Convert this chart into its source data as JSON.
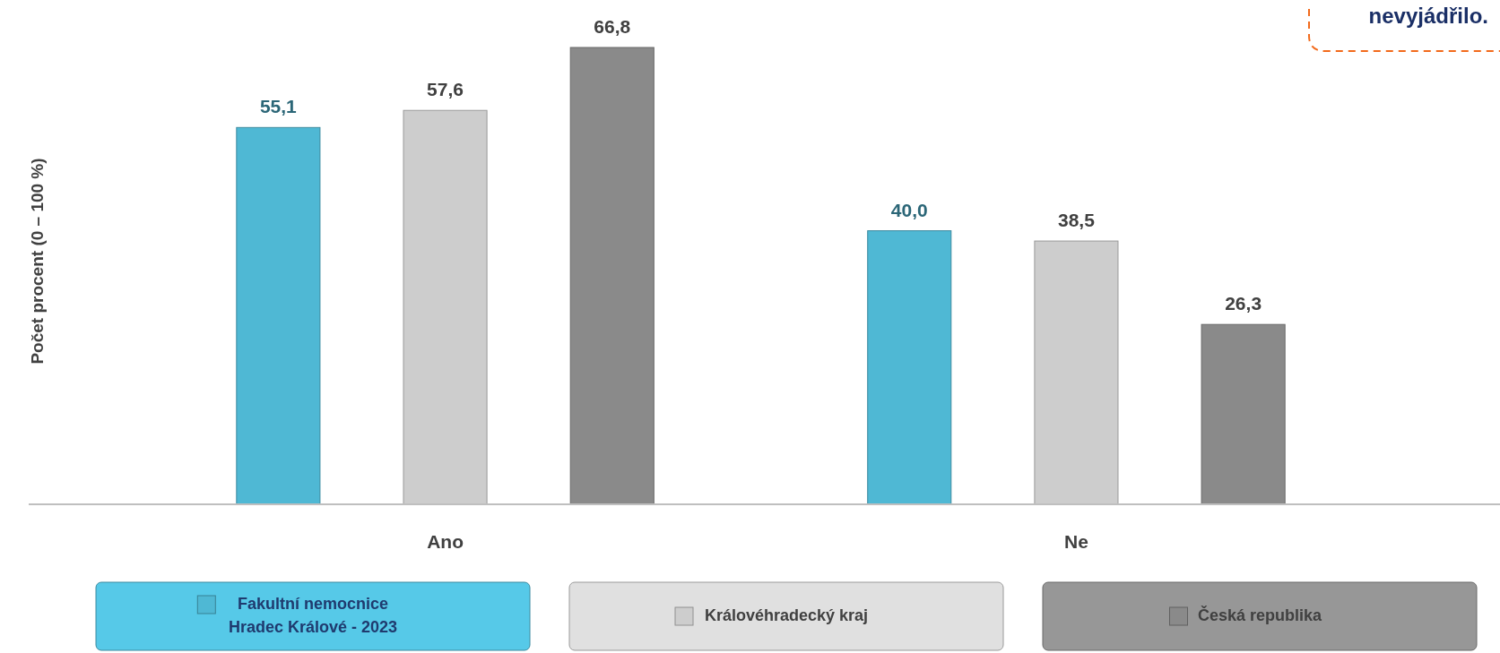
{
  "chart_data": {
    "type": "bar",
    "ylabel": "Počet procent  (0 – 100 %)",
    "categories": [
      "Ano",
      "Ne"
    ],
    "series": [
      {
        "name": "Fakultní nemocnice\nHradec Králové - 2023",
        "color": "#4fb8d4",
        "values": [
          55.1,
          40.0
        ],
        "value_labels": [
          "55,1",
          "40,0"
        ]
      },
      {
        "name": "Královéhradecký kraj",
        "color": "#cdcdcd",
        "values": [
          57.6,
          38.5
        ],
        "value_labels": [
          "57,6",
          "38,5"
        ]
      },
      {
        "name": "Česká republika",
        "color": "#8a8a8a",
        "values": [
          66.8,
          26.3
        ],
        "value_labels": [
          "66,8",
          "26,3"
        ]
      }
    ],
    "legend": "bottom",
    "annotations": [
      "nevyjádřilo."
    ]
  }
}
